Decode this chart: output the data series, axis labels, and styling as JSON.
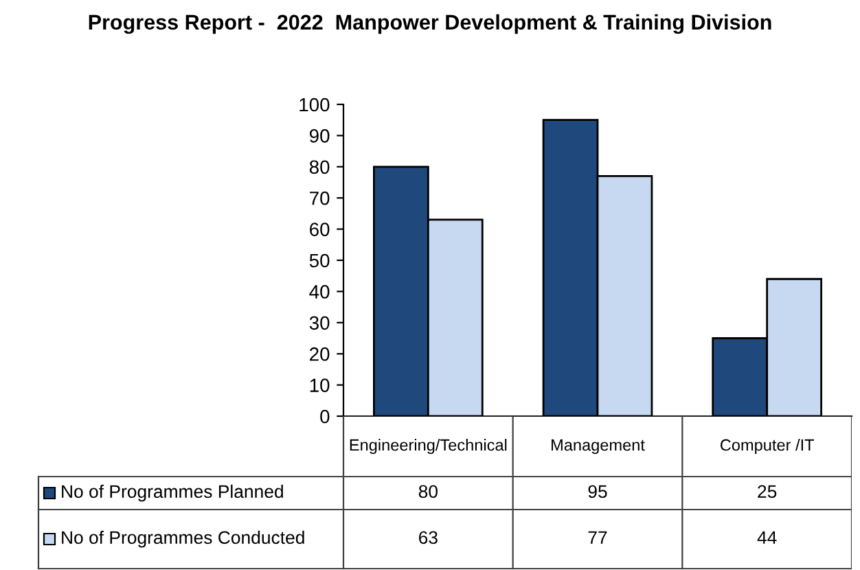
{
  "chart_data": {
    "type": "bar",
    "title": "Progress Report -  2022  Manpower Development & Training Division",
    "categories": [
      "Engineering/Technical",
      "Management",
      "Computer /IT"
    ],
    "series": [
      {
        "name": "No of Programmes Planned",
        "color": "#1f497d",
        "values": [
          80,
          95,
          25
        ]
      },
      {
        "name": "No of Programmes Conducted",
        "color": "#c6d9f1",
        "values": [
          63,
          77,
          44
        ]
      }
    ],
    "ylim": [
      0,
      100
    ],
    "yticks": [
      0,
      10,
      20,
      30,
      40,
      50,
      60,
      70,
      80,
      90,
      100
    ],
    "grid": false,
    "legend": "bottom",
    "data_labels": true
  }
}
